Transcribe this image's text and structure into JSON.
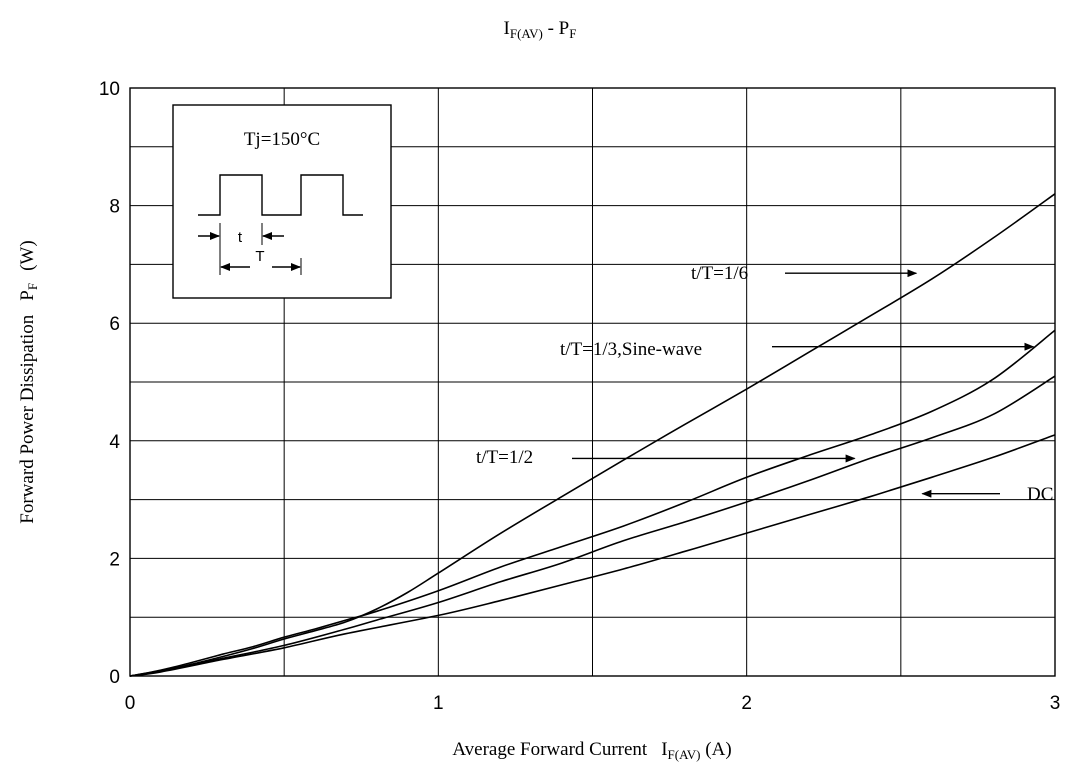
{
  "chart_data": {
    "type": "line",
    "title": {
      "main": "I",
      "sub": "F(AV)",
      "sep": " - ",
      "main2": "P",
      "sub2": "F"
    },
    "xlabel": {
      "text": "Average Forward Current",
      "sym": "I",
      "sub": "F(AV)",
      "unit": " (A)"
    },
    "ylabel": {
      "text": "Forward Power Dissipation",
      "sym": "P",
      "sub": "F",
      "unit": "(W)"
    },
    "xlim": [
      0,
      3
    ],
    "ylim": [
      0,
      10
    ],
    "x_ticks": [
      "0",
      "1",
      "2",
      "3"
    ],
    "y_ticks": [
      "0",
      "2",
      "4",
      "6",
      "8",
      "10"
    ],
    "grid": true,
    "inset": {
      "label": "Tj=150°C",
      "t_label": "t",
      "T_label": "T"
    },
    "series": [
      {
        "name": "t/T=1/6",
        "points": [
          [
            0,
            0
          ],
          [
            0.1,
            0.08
          ],
          [
            0.2,
            0.2
          ],
          [
            0.3,
            0.33
          ],
          [
            0.4,
            0.47
          ],
          [
            0.5,
            0.63
          ],
          [
            0.6,
            0.77
          ],
          [
            0.7,
            0.92
          ],
          [
            0.8,
            1.14
          ],
          [
            0.9,
            1.42
          ],
          [
            1.0,
            1.75
          ],
          [
            1.2,
            2.42
          ],
          [
            1.4,
            3.05
          ],
          [
            1.6,
            3.67
          ],
          [
            1.8,
            4.28
          ],
          [
            2.0,
            4.88
          ],
          [
            2.2,
            5.5
          ],
          [
            2.4,
            6.12
          ],
          [
            2.6,
            6.75
          ],
          [
            2.8,
            7.45
          ],
          [
            3.0,
            8.2
          ]
        ]
      },
      {
        "name": "t/T=1/3,Sine-wave",
        "points": [
          [
            0,
            0
          ],
          [
            0.1,
            0.1
          ],
          [
            0.2,
            0.23
          ],
          [
            0.3,
            0.37
          ],
          [
            0.4,
            0.5
          ],
          [
            0.5,
            0.66
          ],
          [
            0.6,
            0.8
          ],
          [
            0.7,
            0.95
          ],
          [
            0.8,
            1.1
          ],
          [
            1.0,
            1.45
          ],
          [
            1.2,
            1.85
          ],
          [
            1.4,
            2.2
          ],
          [
            1.6,
            2.55
          ],
          [
            1.8,
            2.95
          ],
          [
            2.0,
            3.38
          ],
          [
            2.2,
            3.75
          ],
          [
            2.4,
            4.1
          ],
          [
            2.6,
            4.5
          ],
          [
            2.8,
            5.05
          ],
          [
            3.0,
            5.88
          ]
        ]
      },
      {
        "name": "t/T=1/2",
        "points": [
          [
            0,
            0
          ],
          [
            0.1,
            0.09
          ],
          [
            0.3,
            0.3
          ],
          [
            0.5,
            0.52
          ],
          [
            0.7,
            0.8
          ],
          [
            0.8,
            0.95
          ],
          [
            1.0,
            1.25
          ],
          [
            1.2,
            1.6
          ],
          [
            1.4,
            1.92
          ],
          [
            1.6,
            2.3
          ],
          [
            1.8,
            2.62
          ],
          [
            2.0,
            2.96
          ],
          [
            2.2,
            3.32
          ],
          [
            2.4,
            3.7
          ],
          [
            2.6,
            4.05
          ],
          [
            2.8,
            4.45
          ],
          [
            3.0,
            5.1
          ]
        ]
      },
      {
        "name": "DC",
        "points": [
          [
            0,
            0
          ],
          [
            0.1,
            0.07
          ],
          [
            0.3,
            0.28
          ],
          [
            0.5,
            0.48
          ],
          [
            0.7,
            0.72
          ],
          [
            1.0,
            1.03
          ],
          [
            1.2,
            1.28
          ],
          [
            1.4,
            1.55
          ],
          [
            1.6,
            1.82
          ],
          [
            1.8,
            2.12
          ],
          [
            2.0,
            2.43
          ],
          [
            2.2,
            2.74
          ],
          [
            2.4,
            3.05
          ],
          [
            2.6,
            3.38
          ],
          [
            2.8,
            3.72
          ],
          [
            3.0,
            4.1
          ]
        ]
      }
    ],
    "annotations": [
      {
        "text": "t/T=1/6",
        "arrow_to": [
          2.55,
          6.85
        ]
      },
      {
        "text": "t/T=1/3,Sine-wave",
        "arrow_to": [
          2.93,
          5.6
        ]
      },
      {
        "text": "t/T=1/2",
        "arrow_to": [
          2.35,
          3.7
        ]
      },
      {
        "text": "DC",
        "arrow_to": [
          2.57,
          3.1
        ]
      }
    ]
  }
}
